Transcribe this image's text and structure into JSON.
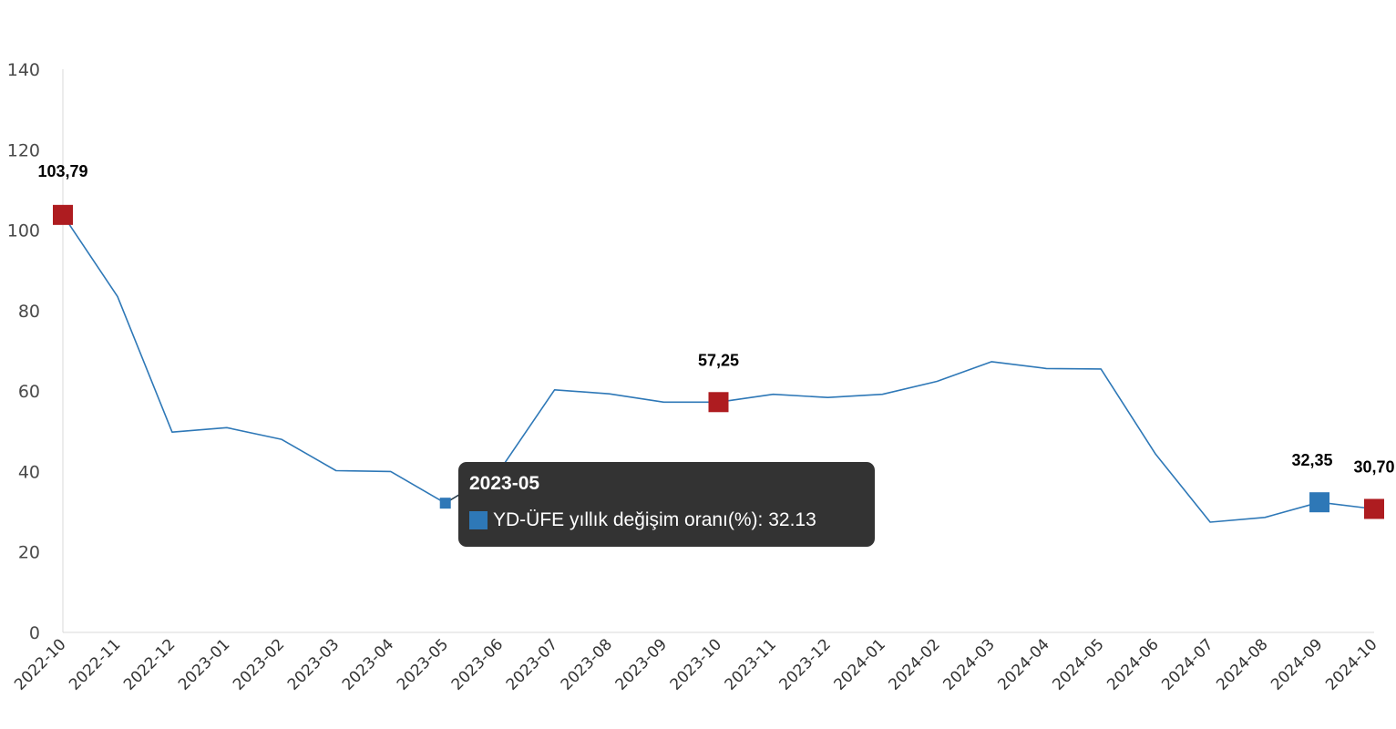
{
  "chart_data": {
    "type": "line",
    "categories": [
      "2022-10",
      "2022-11",
      "2022-12",
      "2023-01",
      "2023-02",
      "2023-03",
      "2023-04",
      "2023-05",
      "2023-06",
      "2023-07",
      "2023-08",
      "2023-09",
      "2023-10",
      "2023-11",
      "2023-12",
      "2024-01",
      "2024-02",
      "2024-03",
      "2024-04",
      "2024-05",
      "2024-06",
      "2024-07",
      "2024-08",
      "2024-09",
      "2024-10"
    ],
    "series": [
      {
        "name": "YD-ÜFE yıllık değişim oranı(%)",
        "values": [
          103.79,
          83.5,
          49.8,
          50.9,
          48.0,
          40.2,
          40.0,
          32.13,
          40.4,
          60.3,
          59.3,
          57.25,
          57.25,
          59.2,
          58.4,
          59.2,
          62.4,
          67.3,
          65.6,
          65.5,
          44.3,
          27.4,
          28.6,
          32.35,
          30.7
        ]
      }
    ],
    "ylim": [
      0,
      140
    ],
    "yticks": [
      "0",
      "20",
      "40",
      "60",
      "80",
      "100",
      "120",
      "140"
    ],
    "grid": false,
    "colors": {
      "line": "#2e78b7",
      "highlight_red": "#ae1c20",
      "highlight_blue": "#2e78b7"
    },
    "highlighted_points": [
      {
        "category": "2022-10",
        "label": "103,79",
        "color": "red"
      },
      {
        "category": "2023-10",
        "label": "57,25",
        "color": "red"
      },
      {
        "category": "2024-09",
        "label": "32,35",
        "color": "blue"
      },
      {
        "category": "2024-10",
        "label": "30,70",
        "color": "red"
      }
    ],
    "hovered_point": {
      "category": "2023-05"
    }
  },
  "tooltip": {
    "title": "2023-05",
    "series_name": "YD-ÜFE yıllık değişim oranı(%)",
    "value": "32.13",
    "text": "YD-ÜFE yıllık değişim oranı(%): 32.13"
  }
}
